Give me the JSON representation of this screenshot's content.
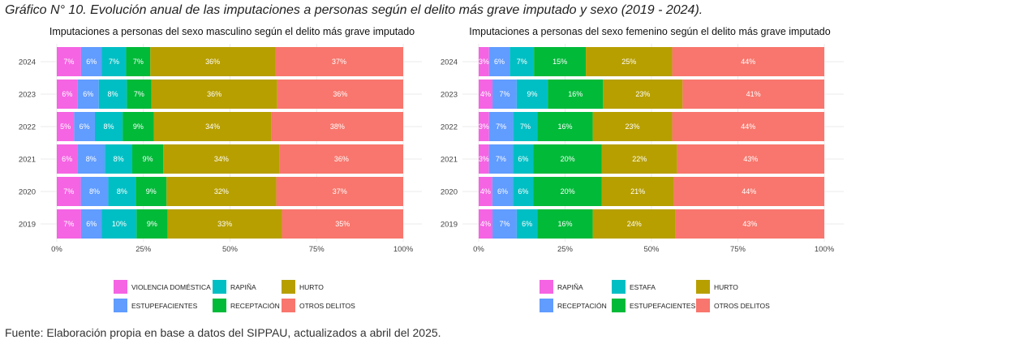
{
  "title": "Gráfico N° 10. Evolución anual de las imputaciones a personas según el delito más grave imputado y sexo (2019 - 2024).",
  "footer": "Fuente: Elaboración propia en base a datos del SIPPAU, actualizados a abril del 2025.",
  "chart_data": [
    {
      "type": "bar",
      "orientation": "horizontal-stacked",
      "title": "Imputaciones a personas del sexo masculino según el delito más grave imputado",
      "categories": [
        "2024",
        "2023",
        "2022",
        "2021",
        "2020",
        "2019"
      ],
      "xlim": [
        0,
        100
      ],
      "x_ticks": [
        "0%",
        "25%",
        "50%",
        "75%",
        "100%"
      ],
      "legend_position": "bottom",
      "grid": true,
      "series": [
        {
          "name": "VIOLENCIA DOMÉSTICA",
          "color": "#F564E3",
          "values": [
            7,
            6,
            5,
            6,
            7,
            7
          ]
        },
        {
          "name": "ESTUPEFACIENTES",
          "color": "#619CFF",
          "values": [
            6,
            6,
            6,
            8,
            8,
            6
          ]
        },
        {
          "name": "RAPIÑA",
          "color": "#00BFC4",
          "values": [
            7,
            8,
            8,
            8,
            8,
            10
          ]
        },
        {
          "name": "RECEPTACIÓN",
          "color": "#00BA38",
          "values": [
            7,
            7,
            9,
            9,
            9,
            9
          ]
        },
        {
          "name": "HURTO",
          "color": "#B79F00",
          "values": [
            36,
            36,
            34,
            34,
            32,
            33
          ]
        },
        {
          "name": "OTROS DELITOS",
          "color": "#F8766D",
          "values": [
            37,
            36,
            38,
            36,
            37,
            35
          ]
        }
      ],
      "legend_order": [
        "VIOLENCIA DOMÉSTICA",
        "RAPIÑA",
        "HURTO",
        "ESTUPEFACIENTES",
        "RECEPTACIÓN",
        "OTROS DELITOS"
      ]
    },
    {
      "type": "bar",
      "orientation": "horizontal-stacked",
      "title": "Imputaciones a personas del sexo femenino según el delito más grave imputado",
      "categories": [
        "2024",
        "2023",
        "2022",
        "2021",
        "2020",
        "2019"
      ],
      "xlim": [
        0,
        100
      ],
      "x_ticks": [
        "0%",
        "25%",
        "50%",
        "75%",
        "100%"
      ],
      "legend_position": "bottom",
      "grid": true,
      "series": [
        {
          "name": "RAPIÑA",
          "color": "#F564E3",
          "values": [
            3,
            4,
            3,
            3,
            4,
            4
          ]
        },
        {
          "name": "RECEPTACIÓN",
          "color": "#619CFF",
          "values": [
            6,
            7,
            7,
            7,
            6,
            7
          ]
        },
        {
          "name": "ESTAFA",
          "color": "#00BFC4",
          "values": [
            7,
            9,
            7,
            6,
            6,
            6
          ]
        },
        {
          "name": "ESTUPEFACIENTES",
          "color": "#00BA38",
          "values": [
            15,
            16,
            16,
            20,
            20,
            16
          ]
        },
        {
          "name": "HURTO",
          "color": "#B79F00",
          "values": [
            25,
            23,
            23,
            22,
            21,
            24
          ]
        },
        {
          "name": "OTROS DELITOS",
          "color": "#F8766D",
          "values": [
            44,
            41,
            44,
            43,
            44,
            43
          ]
        }
      ],
      "legend_order": [
        "RAPIÑA",
        "ESTAFA",
        "HURTO",
        "RECEPTACIÓN",
        "ESTUPEFACIENTES",
        "OTROS DELITOS"
      ]
    }
  ]
}
